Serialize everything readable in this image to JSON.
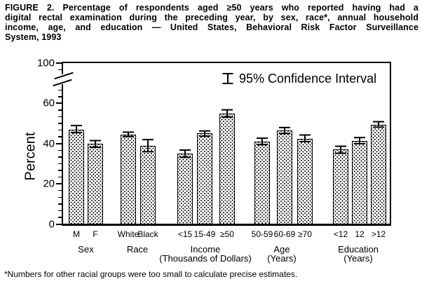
{
  "figure": {
    "title_lines": [
      "FIGURE 2. Percentage of respondents aged ≥50 years who reported having had a",
      "digital rectal examination during the preceding year, by sex, race*, annual household",
      "income, age, and education — United States, Behavioral Risk Factor Surveillance",
      "System, 1993"
    ],
    "footnote": "*Numbers for other racial groups were too small to calculate precise estimates."
  },
  "chart_data": {
    "type": "bar",
    "title": "",
    "xlabel": "",
    "ylabel": "Percent",
    "ylim": [
      0,
      100
    ],
    "y_ticks": [
      0,
      20,
      40,
      60,
      100
    ],
    "axis_break_between": [
      60,
      100
    ],
    "grid": "off",
    "legend": {
      "label": "95% Confidence Interval",
      "icon": "error-bar-icon",
      "position": "top-right-inside"
    },
    "bar_fill": "stipple-dots",
    "colors": {
      "ink": "#000000",
      "paper": "#ffffff"
    },
    "groups": [
      {
        "label": "Sex",
        "sublabel": "",
        "bars": [
          {
            "label": "M",
            "value": 47,
            "ci": [
              45.5,
              49
            ]
          },
          {
            "label": "F",
            "value": 40,
            "ci": [
              38.2,
              41.5
            ]
          }
        ]
      },
      {
        "label": "Race",
        "sublabel": "",
        "bars": [
          {
            "label": "White",
            "value": 44.5,
            "ci": [
              43.5,
              45.7
            ]
          },
          {
            "label": "Black",
            "value": 39,
            "ci": [
              36,
              42
            ]
          }
        ]
      },
      {
        "label": "Income",
        "sublabel": "(Thousands of Dollars)",
        "bars": [
          {
            "label": "<15",
            "value": 35,
            "ci": [
              33.2,
              36.8
            ]
          },
          {
            "label": "15-49",
            "value": 45,
            "ci": [
              43.7,
              46.3
            ]
          },
          {
            "label": "≥50",
            "value": 55,
            "ci": [
              53.2,
              56.8
            ]
          }
        ]
      },
      {
        "label": "Age",
        "sublabel": "(Years)",
        "bars": [
          {
            "label": "50-59",
            "value": 41,
            "ci": [
              39.5,
              42.7
            ]
          },
          {
            "label": "60-69",
            "value": 46.5,
            "ci": [
              45,
              48
            ]
          },
          {
            "label": "≥70",
            "value": 42.5,
            "ci": [
              41,
              44.3
            ]
          }
        ]
      },
      {
        "label": "Education",
        "sublabel": "(Years)",
        "bars": [
          {
            "label": "<12",
            "value": 37,
            "ci": [
              35.2,
              38.7
            ]
          },
          {
            "label": "12",
            "value": 41.5,
            "ci": [
              40,
              43
            ]
          },
          {
            "label": ">12",
            "value": 49.5,
            "ci": [
              48.2,
              50.9
            ]
          }
        ]
      }
    ]
  }
}
